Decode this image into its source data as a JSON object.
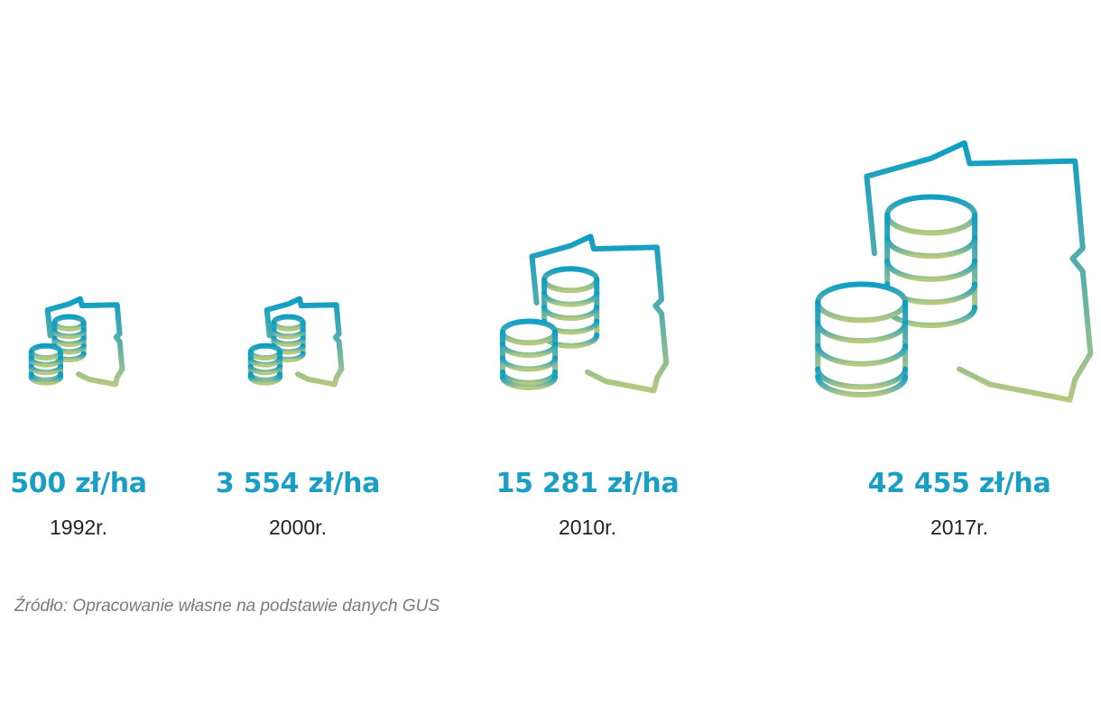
{
  "chart_data": {
    "type": "pictograph",
    "title": "",
    "xlabel": "",
    "ylabel": "",
    "unit": "zł/ha",
    "categories": [
      "1992r.",
      "2000r.",
      "2010r.",
      "2017r."
    ],
    "values": [
      500,
      3554,
      15281,
      42455
    ],
    "value_labels": [
      "500 zł/ha",
      "3 554 zł/ha",
      "15 281 zł/ha",
      "42 455 zł/ha"
    ],
    "icon": "poland-map-with-coin-stacks-icon",
    "colors": {
      "value_text": "#1b9ec4",
      "gradient_top": "#0e9ec4",
      "gradient_bottom": "#b5c97f"
    }
  },
  "source": "Źródło: Opracowanie własne na podstawie danych GUS"
}
